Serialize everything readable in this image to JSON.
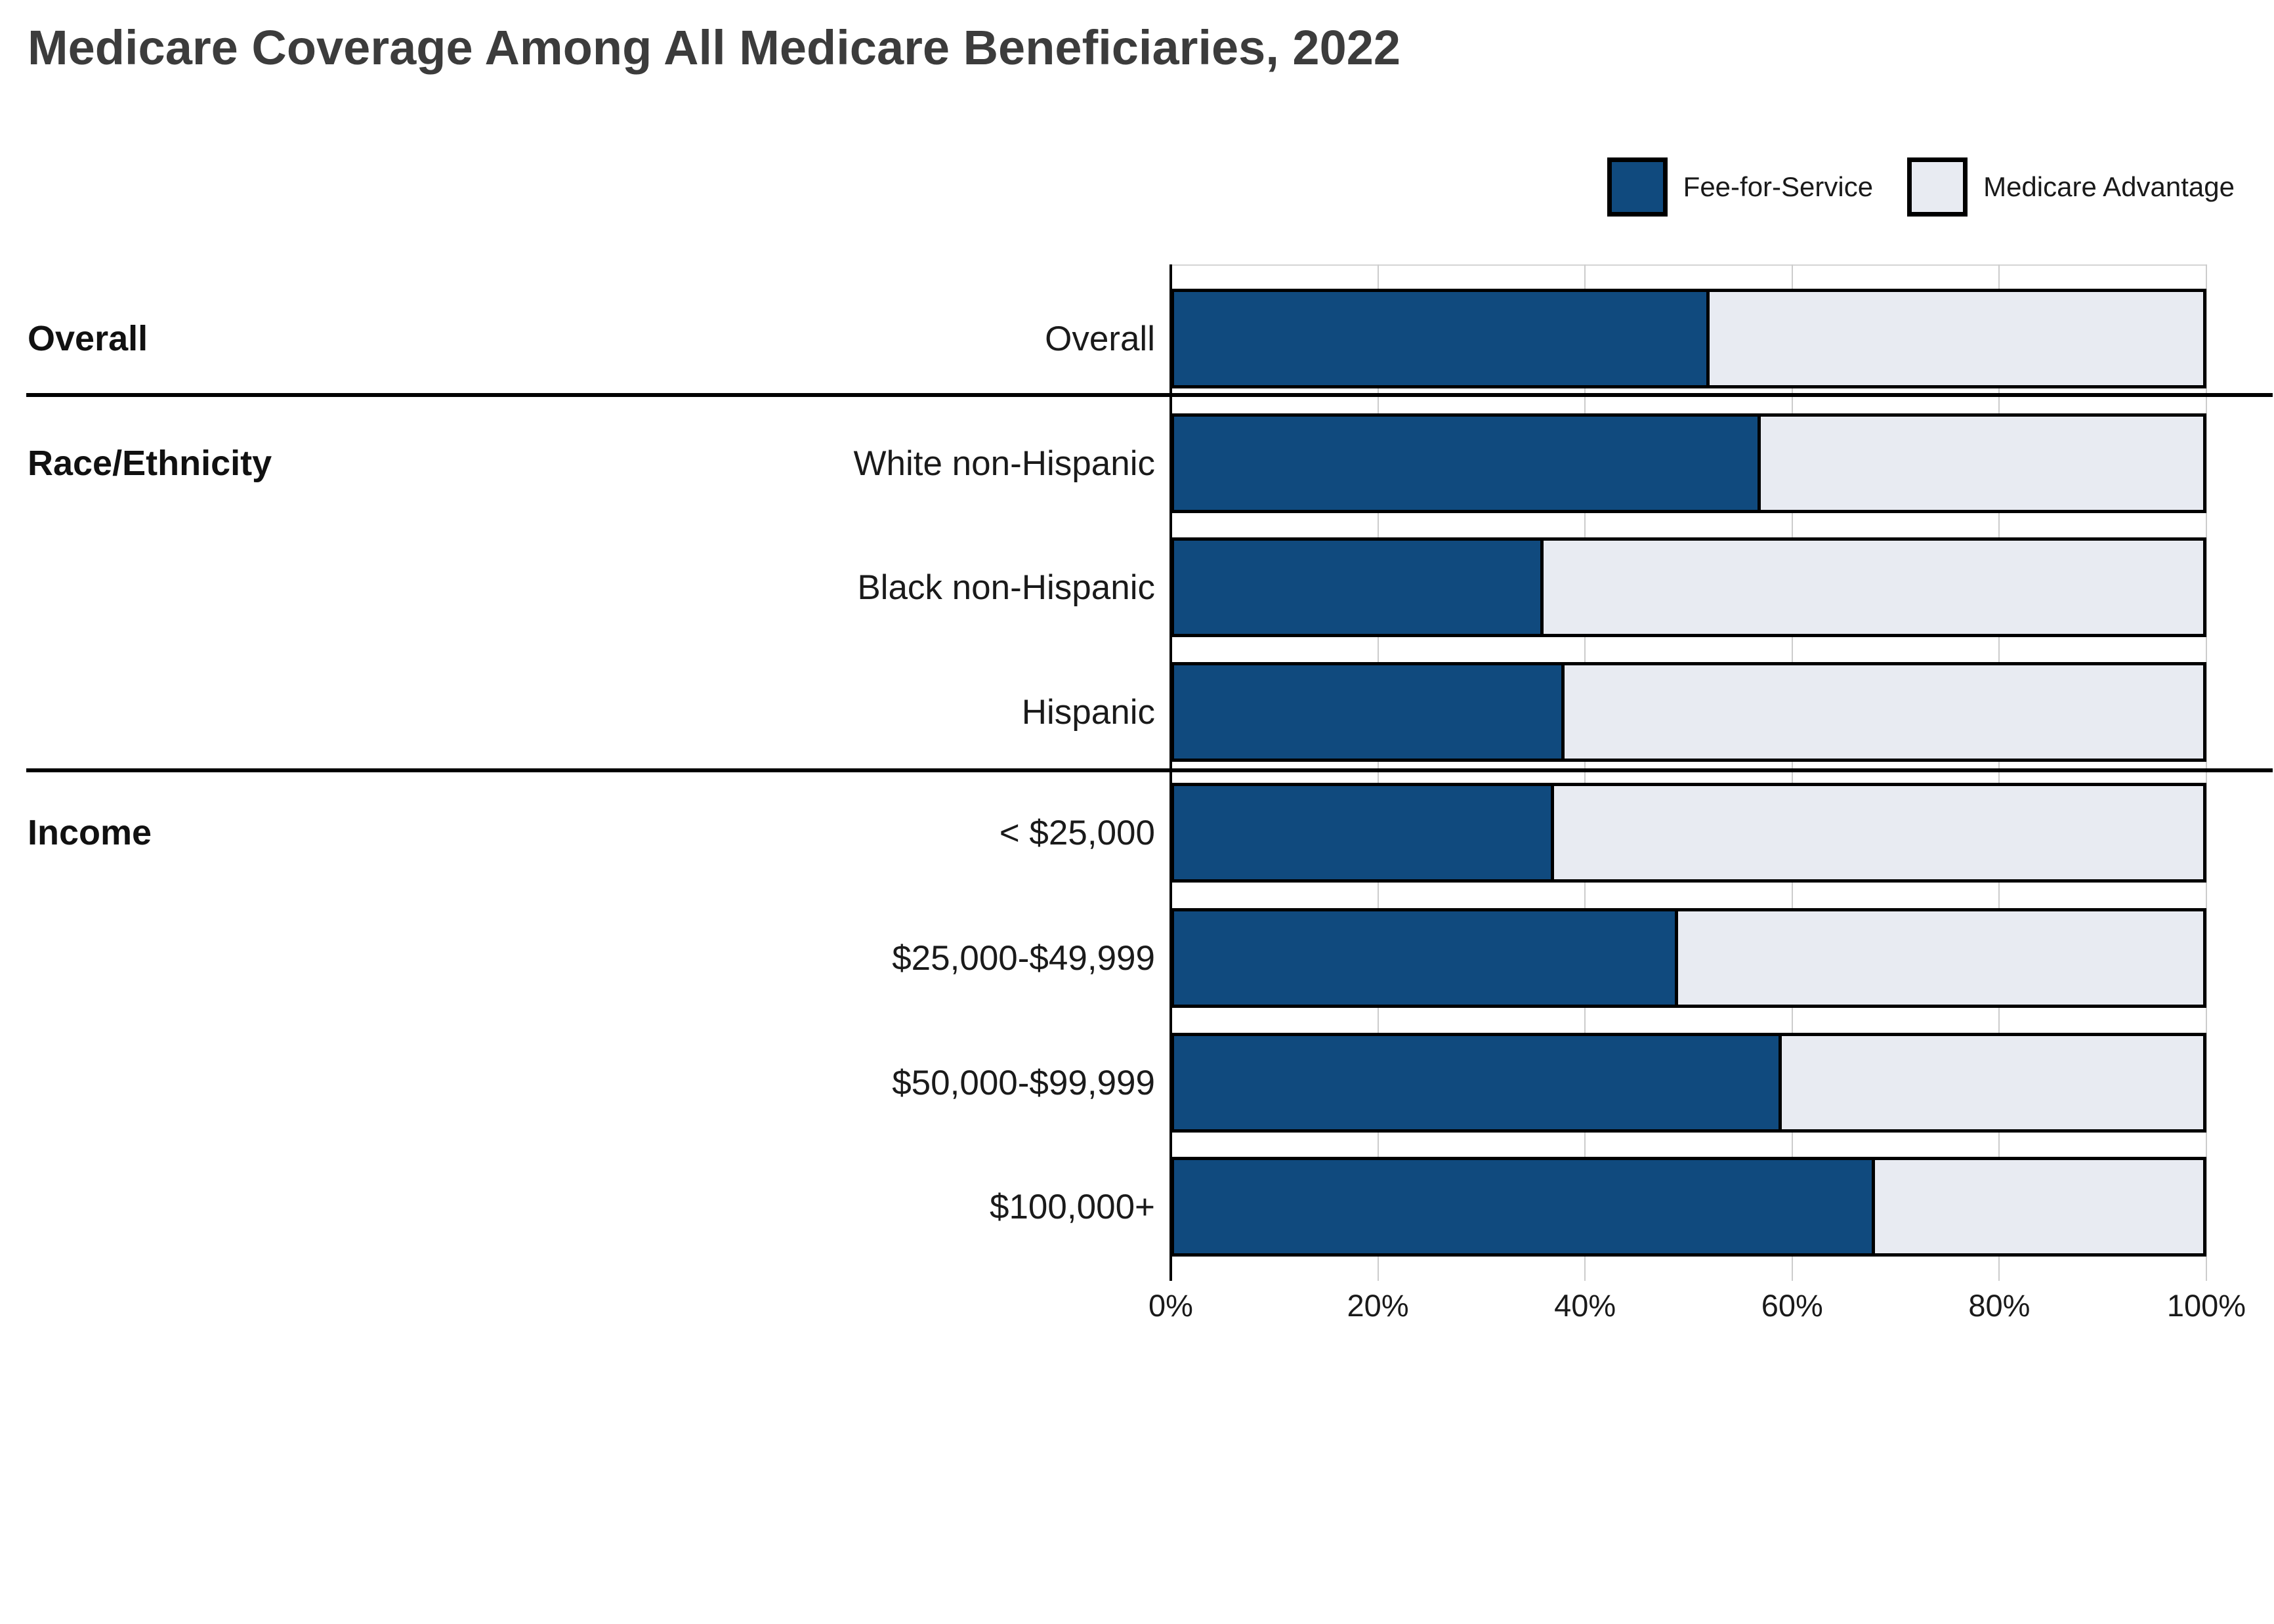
{
  "title": "Medicare Coverage Among All Medicare Beneficiaries, 2022",
  "legend": {
    "items": [
      {
        "label": "Fee-for-Service",
        "color": "#104A7E"
      },
      {
        "label": "Medicare Advantage",
        "color": "#E8EBF2"
      }
    ]
  },
  "colors": {
    "fee_for_service": "#104A7E",
    "medicare_advantage": "#E8EBF2",
    "bar_border": "#000000",
    "gridline": "#cccccc",
    "title_text": "#3c3c3c"
  },
  "chart_data": {
    "type": "bar",
    "stacked": true,
    "orientation": "horizontal",
    "title": "Medicare Coverage Among All Medicare Beneficiaries, 2022",
    "xlabel": "",
    "ylabel": "",
    "xlim": [
      0,
      100
    ],
    "unit": "percent",
    "grid": "vertical",
    "legend_position": "top-right",
    "x_ticks": [
      "0%",
      "20%",
      "40%",
      "60%",
      "80%",
      "100%"
    ],
    "groups": [
      {
        "label": "Overall",
        "categories": [
          "Overall"
        ]
      },
      {
        "label": "Race/Ethnicity",
        "categories": [
          "White non-Hispanic",
          "Black non-Hispanic",
          "Hispanic"
        ]
      },
      {
        "label": "Income",
        "categories": [
          "< $25,000",
          "$25,000-$49,999",
          "$50,000-$99,999",
          "$100,000+"
        ]
      }
    ],
    "categories": [
      "Overall",
      "White non-Hispanic",
      "Black non-Hispanic",
      "Hispanic",
      "< $25,000",
      "$25,000-$49,999",
      "$50,000-$99,999",
      "$100,000+"
    ],
    "series": [
      {
        "name": "Fee-for-Service",
        "values": [
          52,
          57,
          36,
          38,
          37,
          49,
          59,
          68
        ]
      },
      {
        "name": "Medicare Advantage",
        "values": [
          48,
          43,
          64,
          62,
          63,
          51,
          41,
          32
        ]
      }
    ]
  }
}
